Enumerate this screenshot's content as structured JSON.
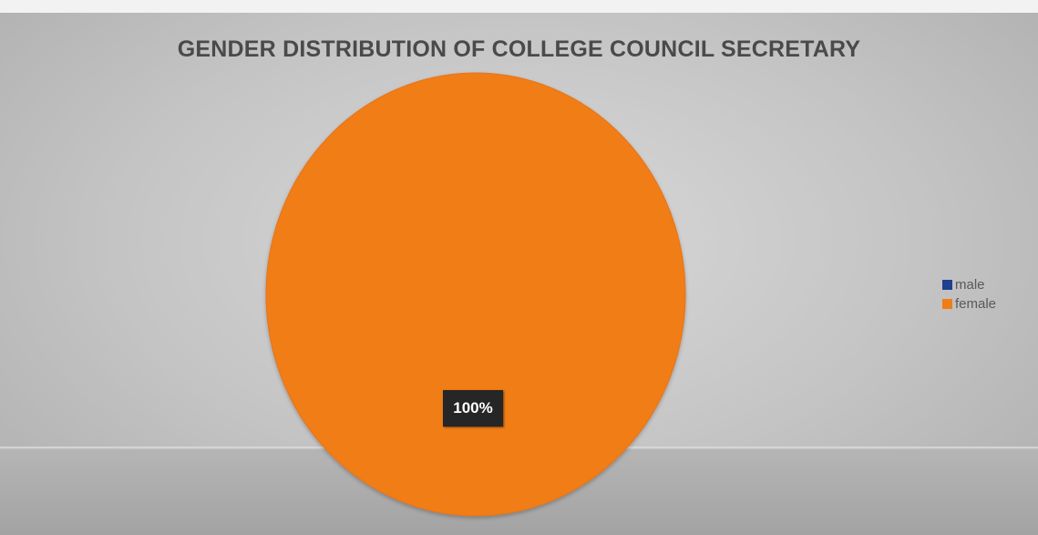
{
  "chart_data": {
    "type": "pie",
    "title": "GENDER DISTRIBUTION OF COLLEGE COUNCIL SECRETARY",
    "categories": [
      "male",
      "female"
    ],
    "values": [
      0,
      100
    ],
    "colors": [
      "#1f3f8f",
      "#f07d16"
    ],
    "data_labels": [
      "100%"
    ],
    "legend_position": "right"
  }
}
